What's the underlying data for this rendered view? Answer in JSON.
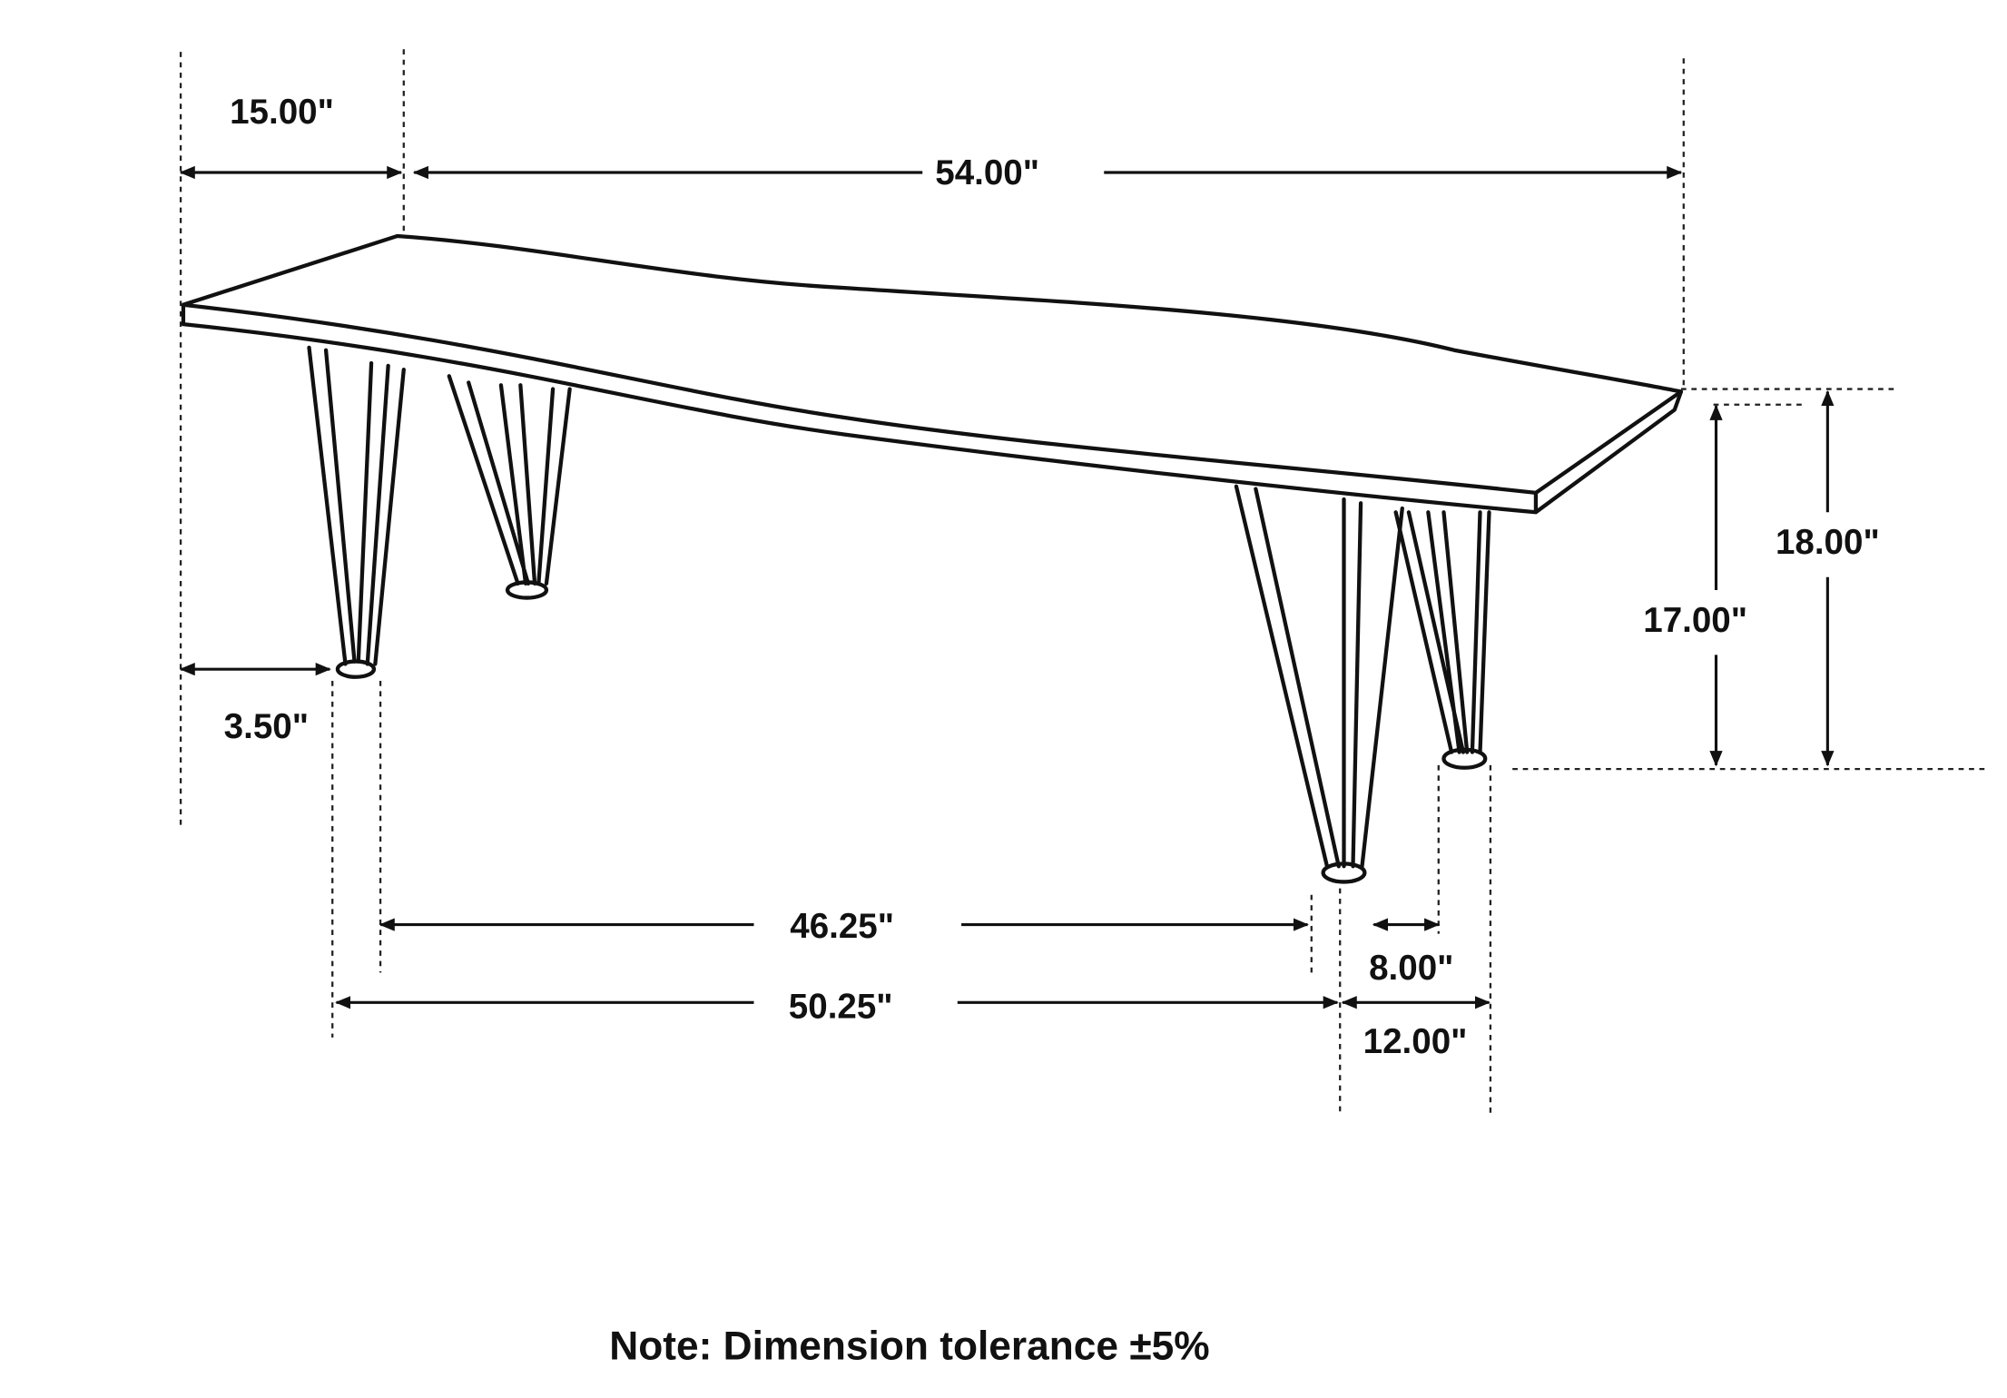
{
  "dimensions": [
    "15.00\"",
    "54.00\"",
    "18.00\"",
    "17.00\"",
    "3.50\"",
    "46.25\"",
    "8.00\"",
    "50.25\"",
    "12.00\""
  ],
  "note": "Note: Dimension tolerance ±5%"
}
